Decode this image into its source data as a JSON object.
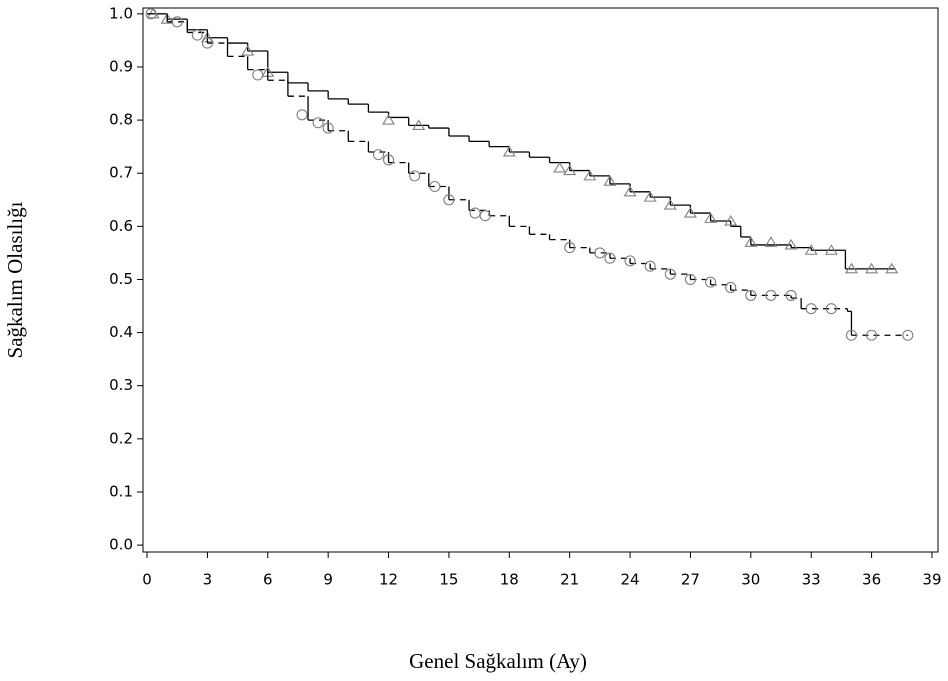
{
  "chart_data": {
    "type": "survival-step",
    "x_label": "Genel Sağkalım (Ay)",
    "y_label": "Sağkalım Olasılığı",
    "xlim": [
      -0.2,
      39.3
    ],
    "ylim": [
      -0.013,
      1.011
    ],
    "xticks": [
      0,
      3,
      6,
      9,
      12,
      15,
      18,
      21,
      24,
      27,
      30,
      33,
      36,
      39
    ],
    "yticks": [
      {
        "value": 0,
        "label": "0.0"
      },
      0.1,
      0.2,
      0.3,
      0.4,
      0.5,
      0.6,
      0.7,
      0.8,
      0.9,
      {
        "value": 1,
        "label": "1.0"
      }
    ],
    "series": [
      {
        "line_style": "solid",
        "marker": "triangle",
        "color": "#000000",
        "marker_color": "#808080",
        "x": [
          0,
          1,
          2,
          3,
          4,
          5,
          6,
          7,
          8,
          9,
          10,
          11,
          12,
          13,
          14,
          15,
          16,
          17,
          18,
          19,
          20,
          21,
          22,
          23,
          24,
          25,
          26,
          27,
          28,
          29,
          29.5,
          30,
          32,
          33,
          34.7,
          37.2
        ],
        "values": [
          1.0,
          0.99,
          0.97,
          0.955,
          0.945,
          0.93,
          0.89,
          0.87,
          0.855,
          0.84,
          0.83,
          0.815,
          0.805,
          0.79,
          0.785,
          0.77,
          0.76,
          0.75,
          0.74,
          0.73,
          0.72,
          0.705,
          0.695,
          0.68,
          0.665,
          0.655,
          0.64,
          0.625,
          0.61,
          0.6,
          0.58,
          0.565,
          0.56,
          0.555,
          0.52,
          0.52
        ],
        "censor_x": [
          0.3,
          1,
          3,
          5,
          6,
          12,
          13.5,
          18,
          20.5,
          21,
          22,
          23,
          24,
          25,
          26,
          27,
          28,
          29,
          30,
          31,
          32,
          33,
          34,
          35,
          36,
          37
        ],
        "censor_values": [
          1.0,
          0.99,
          0.955,
          0.93,
          0.89,
          0.8,
          0.79,
          0.74,
          0.71,
          0.705,
          0.695,
          0.685,
          0.665,
          0.655,
          0.64,
          0.625,
          0.615,
          0.61,
          0.57,
          0.57,
          0.565,
          0.555,
          0.555,
          0.52,
          0.52,
          0.52
        ]
      },
      {
        "line_style": "dashed",
        "marker": "circle",
        "color": "#000000",
        "marker_color": "#808080",
        "x": [
          0,
          1,
          2,
          3,
          4,
          5,
          6,
          7,
          8,
          9,
          10,
          11,
          12,
          13,
          14,
          15,
          16,
          17,
          18,
          19,
          20,
          21,
          22,
          23,
          24,
          25,
          26,
          27,
          28,
          29,
          30,
          32,
          32.5,
          34.8,
          35,
          37.8
        ],
        "values": [
          1.0,
          0.985,
          0.965,
          0.945,
          0.92,
          0.895,
          0.875,
          0.845,
          0.8,
          0.78,
          0.76,
          0.74,
          0.72,
          0.7,
          0.675,
          0.65,
          0.63,
          0.62,
          0.6,
          0.585,
          0.575,
          0.56,
          0.55,
          0.54,
          0.53,
          0.52,
          0.51,
          0.5,
          0.49,
          0.48,
          0.47,
          0.465,
          0.445,
          0.44,
          0.395,
          0.395
        ],
        "censor_x": [
          0.2,
          1.5,
          2.5,
          3,
          5.5,
          7.7,
          8.5,
          9,
          11.5,
          12,
          13.3,
          14.3,
          15,
          16.3,
          16.8,
          21,
          22.5,
          23,
          24,
          25,
          26,
          27,
          28,
          29,
          30,
          31,
          32,
          33,
          34,
          35,
          36,
          37.8
        ],
        "censor_values": [
          1.0,
          0.985,
          0.96,
          0.945,
          0.885,
          0.81,
          0.795,
          0.785,
          0.735,
          0.725,
          0.695,
          0.675,
          0.65,
          0.625,
          0.62,
          0.56,
          0.55,
          0.54,
          0.535,
          0.525,
          0.51,
          0.5,
          0.495,
          0.485,
          0.47,
          0.47,
          0.47,
          0.445,
          0.445,
          0.395,
          0.395,
          0.395
        ]
      }
    ]
  }
}
